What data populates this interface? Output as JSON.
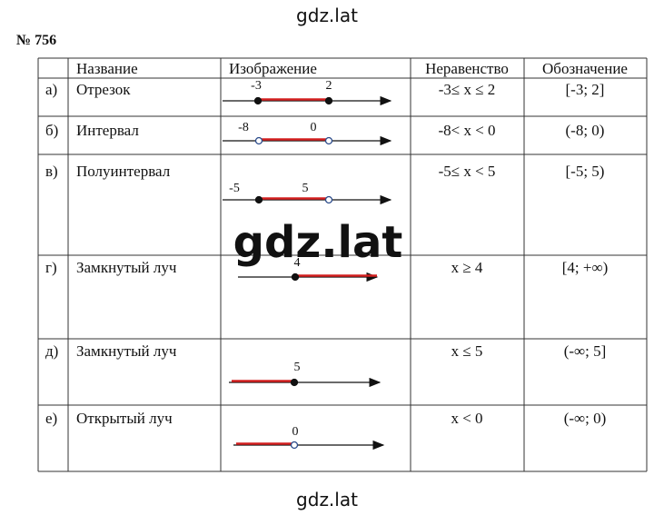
{
  "watermark_top": "gdz.lat",
  "problem": "№ 756",
  "table": {
    "header": [
      "Название",
      "Изображение",
      "Неравенство",
      "Обозначение"
    ],
    "rows": [
      {
        "label": "а)",
        "name": "Отрезок",
        "figure": {
          "labels": [
            "-3",
            "2"
          ]
        },
        "inequality": "-3≤ x ≤ 2",
        "notation": "[-3; 2]"
      },
      {
        "label": "б)",
        "name": "Интервал",
        "figure": {
          "labels": [
            "-8",
            "0"
          ]
        },
        "inequality": "-8< x < 0",
        "notation": "(-8; 0)"
      },
      {
        "label": "в)",
        "name": "Полуинтервал",
        "figure": {
          "labels": [
            "-5",
            "5"
          ]
        },
        "inequality": "-5≤ x < 5",
        "notation": "[-5; 5)"
      },
      {
        "label": "г)",
        "name": "Замкнутый луч",
        "figure": {
          "labels": [
            "4"
          ]
        },
        "inequality": "x ≥ 4",
        "notation": "[4; +∞)"
      },
      {
        "label": "д)",
        "name": "Замкнутый луч",
        "figure": {
          "labels": [
            "5"
          ]
        },
        "inequality": "x ≤ 5",
        "notation": "(-∞; 5]"
      },
      {
        "label": "е)",
        "name": "Открытый луч",
        "figure": {
          "labels": [
            "0"
          ]
        },
        "inequality": "x < 0",
        "notation": "(-∞; 0)"
      }
    ]
  },
  "watermark_middle": "gdz.lat",
  "watermark_bottom": "gdz.lat"
}
